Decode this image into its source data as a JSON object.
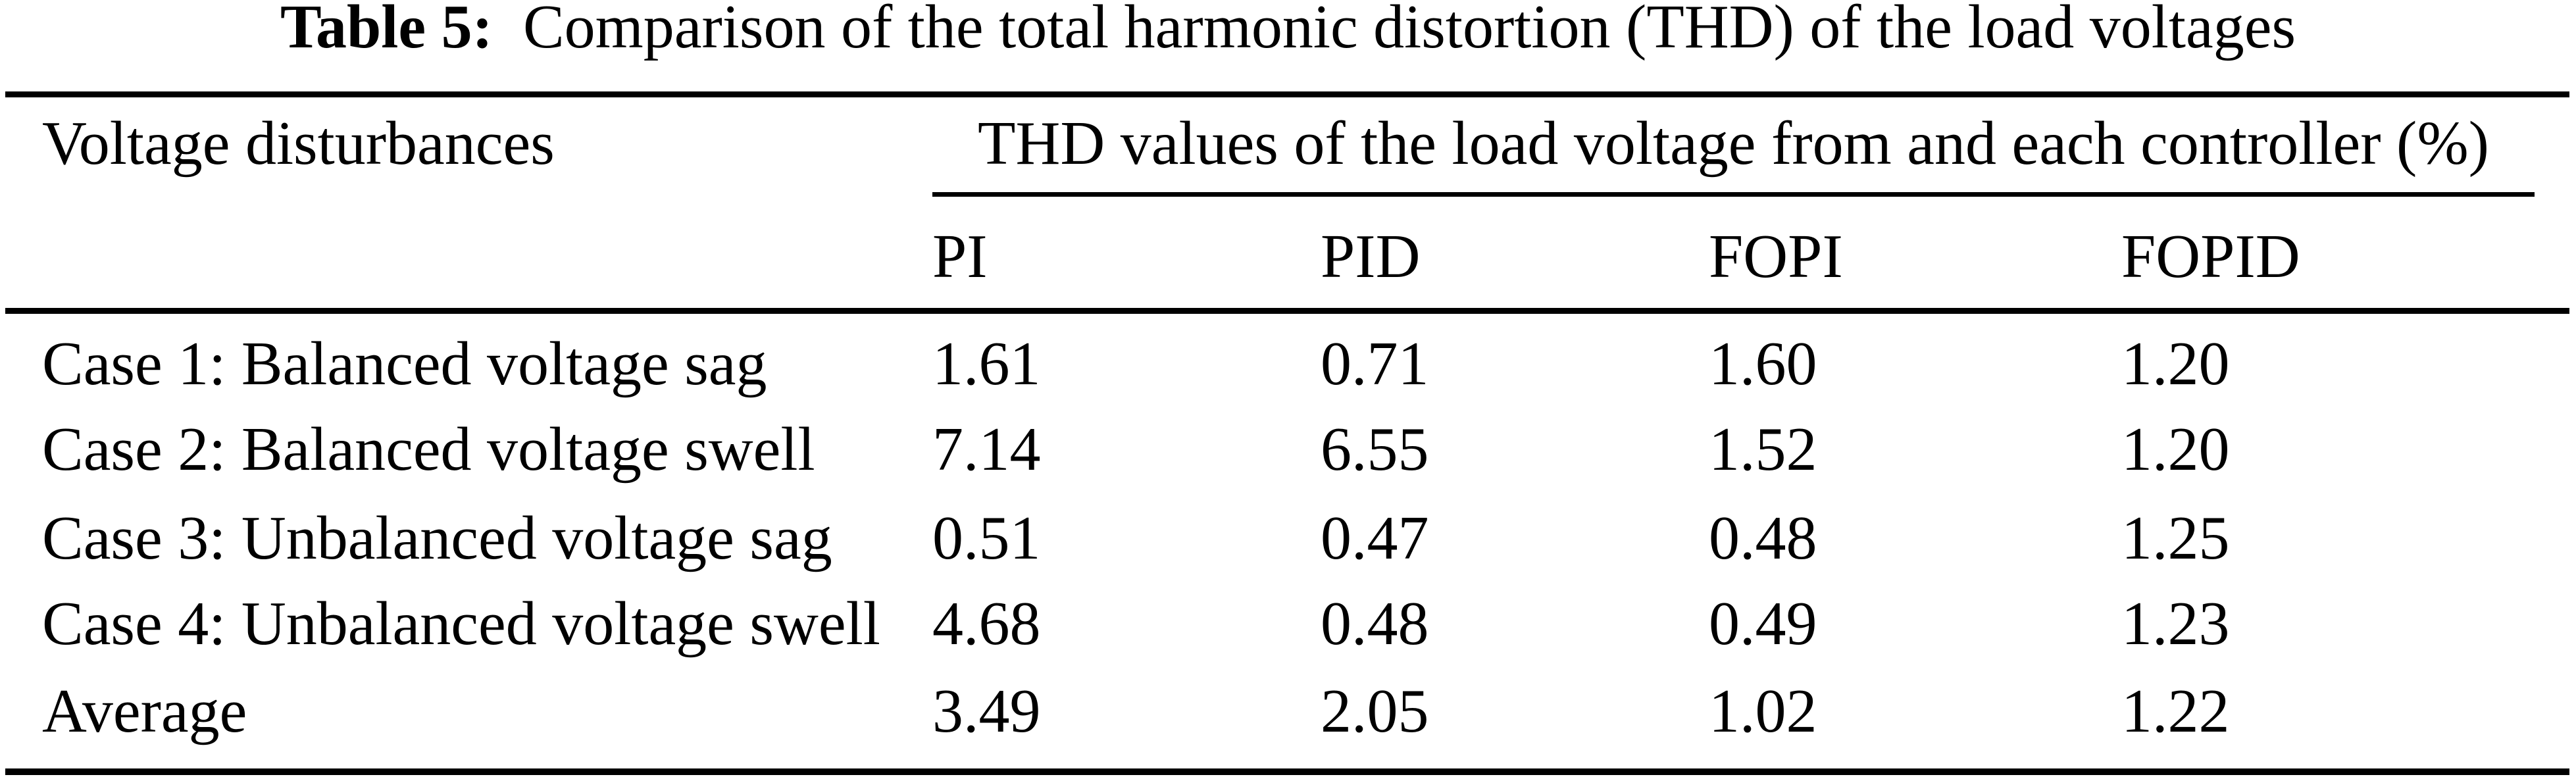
{
  "page": {
    "background_color": "#ffffff",
    "text_color": "#000000"
  },
  "caption": {
    "label": "Table 5:",
    "text": "Comparison of the total harmonic distortion (THD) of the load voltages"
  },
  "table": {
    "stub_header": "Voltage disturbances",
    "span_header": "THD values of the load voltage from and each controller (%)",
    "columns": [
      "PI",
      "PID",
      "FOPI",
      "FOPID"
    ],
    "rows": [
      {
        "label": "Case 1: Balanced voltage sag",
        "values": [
          "1.61",
          "0.71",
          "1.60",
          "1.20"
        ]
      },
      {
        "label": "Case 2: Balanced voltage swell",
        "values": [
          "7.14",
          "6.55",
          "1.52",
          "1.20"
        ]
      },
      {
        "label": "Case 3: Unbalanced voltage sag",
        "values": [
          "0.51",
          "0.47",
          "0.48",
          "1.25"
        ]
      },
      {
        "label": "Case 4: Unbalanced voltage swell",
        "values": [
          "4.68",
          "0.48",
          "0.49",
          "1.23"
        ]
      },
      {
        "label": "Average",
        "values": [
          "3.49",
          "2.05",
          "1.02",
          "1.22"
        ]
      }
    ]
  },
  "chart_data": {
    "type": "table",
    "title": "Table 5: Comparison of the total harmonic distortion (THD) of the load voltages",
    "column_group_header": "THD values of the load voltage from and each controller (%)",
    "columns": [
      "Voltage disturbances",
      "PI",
      "PID",
      "FOPI",
      "FOPID"
    ],
    "rows": [
      [
        "Case 1: Balanced voltage sag",
        1.61,
        0.71,
        1.6,
        1.2
      ],
      [
        "Case 2: Balanced voltage swell",
        7.14,
        6.55,
        1.52,
        1.2
      ],
      [
        "Case 3: Unbalanced voltage sag",
        0.51,
        0.47,
        0.48,
        1.25
      ],
      [
        "Case 4: Unbalanced voltage swell",
        4.68,
        0.48,
        0.49,
        1.23
      ],
      [
        "Average",
        3.49,
        2.05,
        1.02,
        1.22
      ]
    ]
  }
}
